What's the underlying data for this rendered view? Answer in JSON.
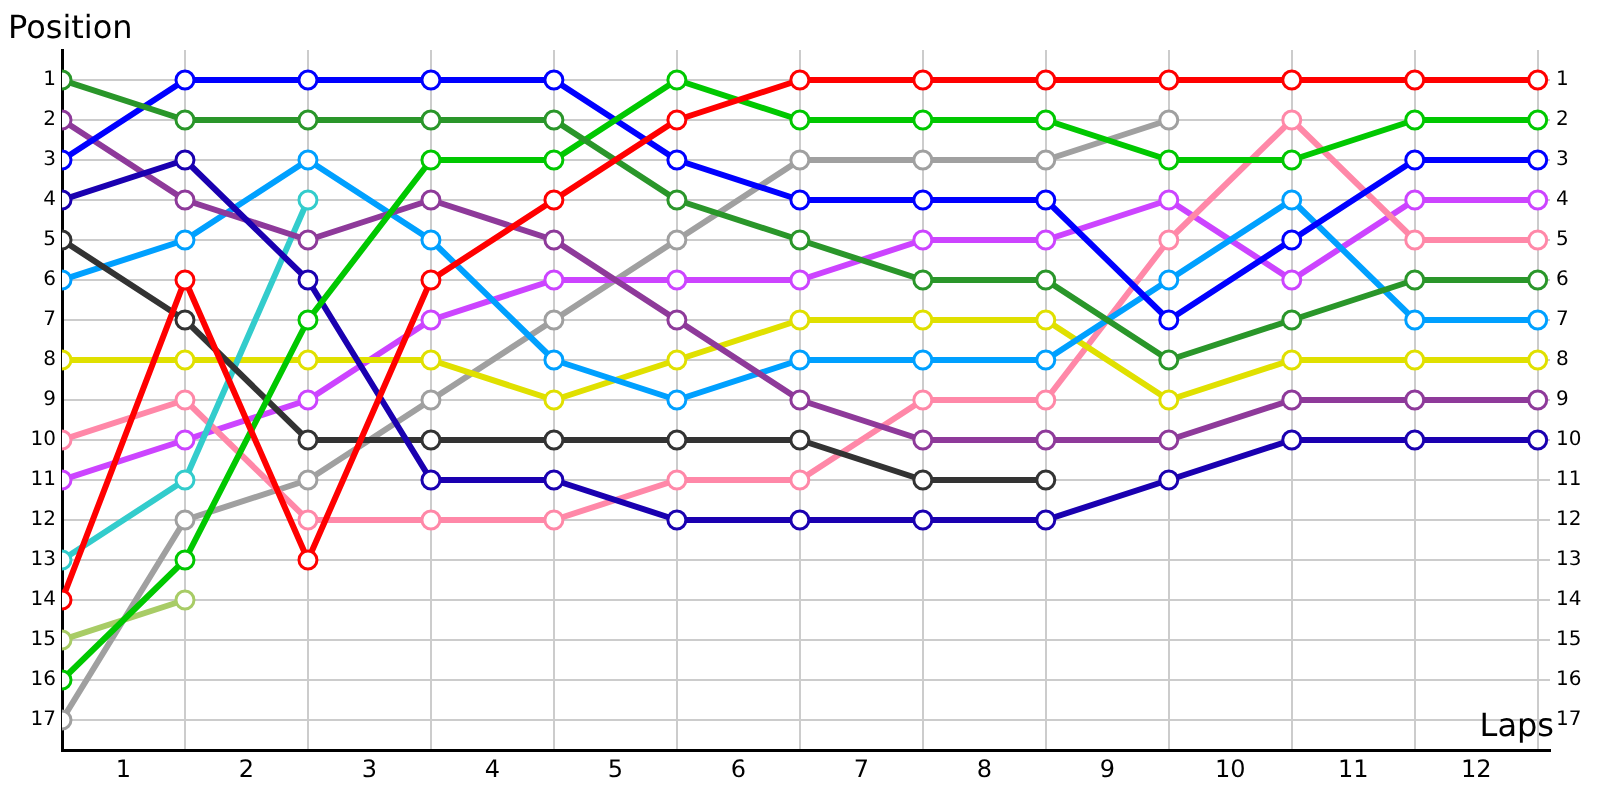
{
  "chart_data": {
    "type": "line",
    "xlabel": "Laps",
    "ylabel": "Position",
    "x": [
      0,
      1,
      2,
      3,
      4,
      5,
      6,
      7,
      8,
      9,
      10,
      11,
      12
    ],
    "xlim": [
      0,
      12.1
    ],
    "xticks": [
      {
        "value": 0,
        "label": null
      },
      {
        "value": 0.5,
        "label": "1"
      },
      {
        "value": 1,
        "label": null
      },
      {
        "value": 1.5,
        "label": "2"
      },
      {
        "value": 2,
        "label": null
      },
      {
        "value": 2.5,
        "label": "3"
      },
      {
        "value": 3,
        "label": null
      },
      {
        "value": 3.5,
        "label": "4"
      },
      {
        "value": 4,
        "label": null
      },
      {
        "value": 4.5,
        "label": "5"
      },
      {
        "value": 5,
        "label": null
      },
      {
        "value": 5.5,
        "label": "6"
      },
      {
        "value": 6,
        "label": null
      },
      {
        "value": 6.5,
        "label": "7"
      },
      {
        "value": 7,
        "label": null
      },
      {
        "value": 7.5,
        "label": "8"
      },
      {
        "value": 8,
        "label": null
      },
      {
        "value": 8.5,
        "label": "9"
      },
      {
        "value": 9,
        "label": null
      },
      {
        "value": 9.5,
        "label": "10"
      },
      {
        "value": 10,
        "label": null
      },
      {
        "value": 10.5,
        "label": "11"
      },
      {
        "value": 11,
        "label": null
      },
      {
        "value": 11.5,
        "label": "12"
      },
      {
        "value": 12,
        "label": null
      }
    ],
    "ylim": [
      17.75,
      0.25
    ],
    "yticks": [
      1,
      2,
      3,
      4,
      5,
      6,
      7,
      8,
      9,
      10,
      11,
      12,
      13,
      14,
      15,
      16,
      17
    ],
    "y2lim": [
      17.75,
      0.25
    ],
    "y2ticks": [
      1,
      2,
      3,
      4,
      5,
      6,
      7,
      8,
      9,
      10,
      11,
      12,
      13,
      14,
      15,
      16,
      17
    ],
    "grid": true,
    "legend": false,
    "marker": "circle",
    "line_style": "solid",
    "series": [
      {
        "color": "#ff0000",
        "values": [
          14,
          6,
          13,
          6,
          4,
          2,
          1,
          1,
          1,
          1,
          1,
          1,
          1
        ]
      },
      {
        "color": "#2a962a",
        "values": [
          1,
          2,
          2,
          2,
          2,
          4,
          5,
          6,
          6,
          8,
          7,
          6,
          6
        ]
      },
      {
        "color": "#00c800",
        "values": [
          16,
          13,
          7,
          3,
          3,
          1,
          2,
          2,
          2,
          3,
          3,
          2,
          2
        ]
      },
      {
        "color": "#0000ff",
        "values": [
          3,
          1,
          1,
          1,
          1,
          3,
          4,
          4,
          4,
          7,
          5,
          3,
          3
        ]
      },
      {
        "color": "#1a00b0",
        "values": [
          4,
          3,
          6,
          11,
          11,
          12,
          12,
          12,
          12,
          11,
          10,
          10,
          10
        ]
      },
      {
        "color": "#8e3a9a",
        "values": [
          2,
          4,
          5,
          4,
          5,
          7,
          9,
          10,
          10,
          10,
          9,
          9,
          9
        ]
      },
      {
        "color": "#333333",
        "values": [
          5,
          7,
          10,
          10,
          10,
          10,
          10,
          11,
          11,
          null,
          null,
          null,
          null
        ]
      },
      {
        "color": "#00a0ff",
        "values": [
          6,
          5,
          3,
          5,
          8,
          9,
          8,
          8,
          8,
          6,
          4,
          7,
          7
        ]
      },
      {
        "color": "#33cccc",
        "values": [
          13,
          11,
          4,
          null,
          null,
          null,
          null,
          null,
          null,
          null,
          null,
          null,
          null
        ]
      },
      {
        "color": "#e0e000",
        "values": [
          8,
          8,
          8,
          8,
          9,
          8,
          7,
          7,
          7,
          9,
          8,
          8,
          8
        ]
      },
      {
        "color": "#ff88a8",
        "values": [
          10,
          9,
          12,
          12,
          12,
          11,
          11,
          9,
          9,
          5,
          2,
          5,
          5
        ]
      },
      {
        "color": "#cc44ff",
        "values": [
          11,
          10,
          9,
          7,
          6,
          6,
          6,
          5,
          5,
          4,
          6,
          4,
          4
        ]
      },
      {
        "color": "#a0a0a0",
        "values": [
          17,
          12,
          11,
          9,
          7,
          5,
          3,
          3,
          3,
          2,
          null,
          null,
          null
        ]
      },
      {
        "color": "#a8cc66",
        "values": [
          15,
          14,
          null,
          null,
          null,
          null,
          null,
          null,
          null,
          null,
          null,
          null,
          null
        ]
      }
    ]
  }
}
